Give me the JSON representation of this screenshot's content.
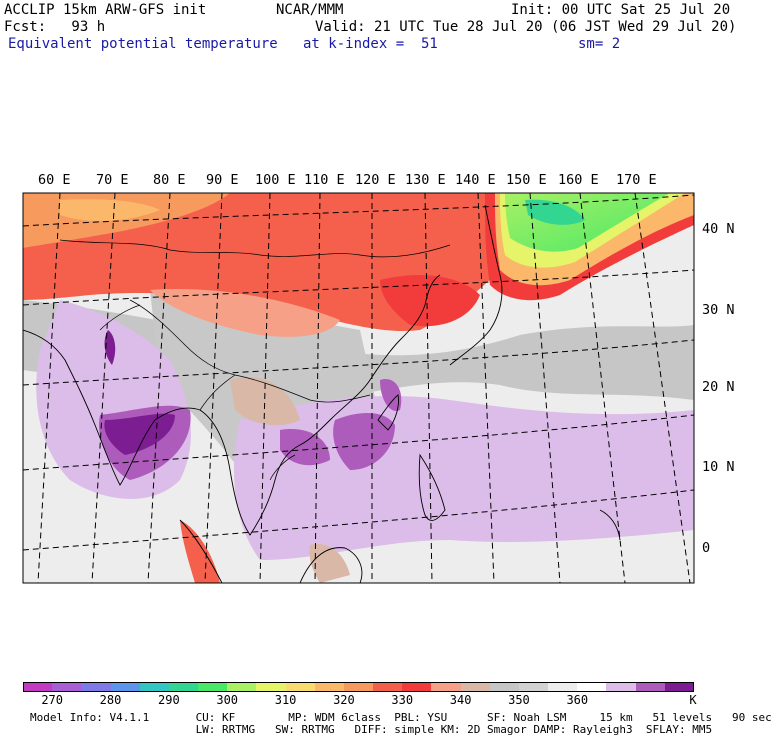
{
  "header": {
    "model": "ACCLIP 15km ARW-GFS init",
    "org": "NCAR/MMM",
    "init": "Init: 00 UTC Sat 25 Jul 20",
    "fcst": "Fcst:   93 h",
    "valid": "Valid: 21 UTC Tue 28 Jul 20 (06 JST Wed 29 Jul 20)",
    "field": "Equivalent potential temperature",
    "level": "at k-index =  51",
    "smooth": "sm= 2"
  },
  "map": {
    "lon_labels": [
      "60 E",
      "70 E",
      "80 E",
      "90 E",
      "100 E",
      "110 E",
      "120 E",
      "130 E",
      "140 E",
      "150 E",
      "160 E",
      "170 E"
    ],
    "lat_labels": [
      "40 N",
      "30 N",
      "20 N",
      "10 N",
      "0"
    ]
  },
  "colorbar": {
    "colors": [
      "#c23cc2",
      "#a85fd6",
      "#7e7be8",
      "#5c96ec",
      "#33c4c4",
      "#33d690",
      "#49e868",
      "#a8f064",
      "#e6f46a",
      "#f8dc72",
      "#fbb86a",
      "#f79a5e",
      "#f4604c",
      "#f23c3c",
      "#f6a088",
      "#d9b8a8",
      "#c6c6c6",
      "#d2d2d2",
      "#ededed",
      "#ffffff",
      "#dcbce8",
      "#ad5cbc",
      "#7c1e92"
    ],
    "labels": [
      "270",
      "280",
      "290",
      "300",
      "310",
      "320",
      "330",
      "340",
      "350",
      "360"
    ],
    "unit": "K"
  },
  "model_info": {
    "line1": "Model Info: V4.1.1       CU: KF        MP: WDM 6class  PBL: YSU      SF: Noah LSM     15 km   51 levels   90 sec",
    "line2": "                         LW: RRTMG   SW: RRTMG   DIFF: simple KM: 2D Smagor DAMP: Rayleigh3  SFLAY: MM5"
  }
}
